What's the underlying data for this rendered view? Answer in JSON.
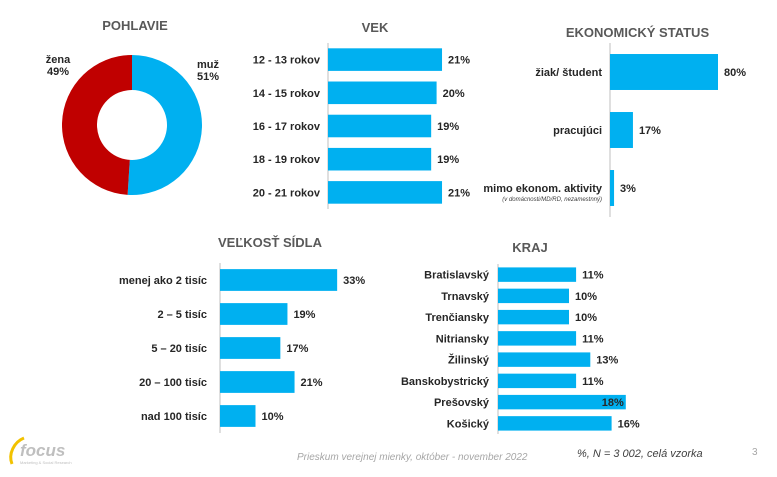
{
  "colors": {
    "bar": "#00b0f0",
    "female": "#c00000",
    "male": "#00b0f0"
  },
  "chart_data": [
    {
      "id": "pohlavie",
      "type": "pie",
      "title": "POHLAVIE",
      "categories": [
        "žena",
        "muž"
      ],
      "values": [
        49,
        51
      ],
      "labels": [
        "49%",
        "51%"
      ]
    },
    {
      "id": "vek",
      "type": "bar",
      "orientation": "horizontal",
      "title": "VEK",
      "categories": [
        "12 - 13 rokov",
        "14 - 15 rokov",
        "16 - 17 rokov",
        "18 - 19 rokov",
        "20 - 21 rokov"
      ],
      "values": [
        21,
        20,
        19,
        19,
        21
      ],
      "labels": [
        "21%",
        "20%",
        "19%",
        "19%",
        "21%"
      ]
    },
    {
      "id": "ekonomicky",
      "type": "bar",
      "orientation": "horizontal",
      "title": "EKONOMICKÝ STATUS",
      "categories": [
        "žiak/ študent",
        "pracujúci",
        "mimo ekonom. aktivity"
      ],
      "note": "(v domácnosti/MD/RD, nezamestnný)",
      "values": [
        80,
        17,
        3
      ],
      "labels": [
        "80%",
        "17%",
        "3%"
      ]
    },
    {
      "id": "velkost",
      "type": "bar",
      "orientation": "horizontal",
      "title": "VEĽKOSŤ SÍDLA",
      "categories": [
        "menej ako 2 tisíc",
        "2 – 5 tisíc",
        "5 – 20 tisíc",
        "20 – 100 tisíc",
        "nad 100 tisíc"
      ],
      "values": [
        33,
        19,
        17,
        21,
        10
      ],
      "labels": [
        "33%",
        "19%",
        "17%",
        "21%",
        "10%"
      ]
    },
    {
      "id": "kraj",
      "type": "bar",
      "orientation": "horizontal",
      "title": "KRAJ",
      "categories": [
        "Bratislavský",
        "Trnavský",
        "Trenčiansky",
        "Nitriansky",
        "Žilinský",
        "Banskobystrický",
        "Prešovský",
        "Košický"
      ],
      "values": [
        11,
        10,
        10,
        11,
        13,
        11,
        18,
        16
      ],
      "labels": [
        "11%",
        "10%",
        "10%",
        "11%",
        "13%",
        "11%",
        "18%",
        "16%"
      ]
    }
  ],
  "footer": {
    "survey": "Prieskum verejnej mienky, október - november 2022",
    "sample": "%, N = 3 002, celá vzorka",
    "page": "3",
    "logo": "focus",
    "logo_sub": "Marketing & Social Research"
  }
}
